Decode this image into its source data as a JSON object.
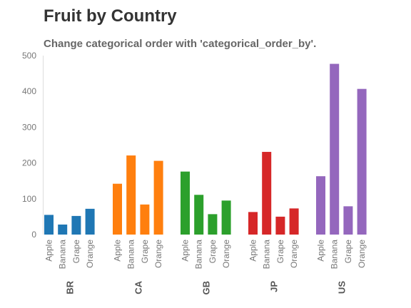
{
  "chart_data": {
    "type": "bar",
    "title": "Fruit by Country",
    "subtitle": "Change categorical order with 'categorical_order_by'.",
    "xlabel": "",
    "ylabel": "",
    "ylim": [
      0,
      500
    ],
    "y_ticks": [
      "0",
      "100",
      "200",
      "300",
      "400",
      "500"
    ],
    "grid": false,
    "groups": [
      {
        "name": "BR",
        "color": "#1f77b4",
        "categories": [
          "Apple",
          "Banana",
          "Grape",
          "Orange"
        ],
        "values": [
          55,
          28,
          52,
          72
        ]
      },
      {
        "name": "CA",
        "color": "#ff7f0e",
        "categories": [
          "Apple",
          "Banana",
          "Grape",
          "Orange"
        ],
        "values": [
          142,
          221,
          84,
          206
        ]
      },
      {
        "name": "GB",
        "color": "#2ca02c",
        "categories": [
          "Apple",
          "Banana",
          "Grape",
          "Orange"
        ],
        "values": [
          176,
          111,
          57,
          95
        ]
      },
      {
        "name": "JP",
        "color": "#d62728",
        "categories": [
          "Apple",
          "Banana",
          "Grape",
          "Orange"
        ],
        "values": [
          63,
          231,
          50,
          73
        ]
      },
      {
        "name": "US",
        "color": "#9467bd",
        "categories": [
          "Apple",
          "Banana",
          "Grape",
          "Orange"
        ],
        "values": [
          163,
          477,
          79,
          407
        ]
      }
    ]
  }
}
